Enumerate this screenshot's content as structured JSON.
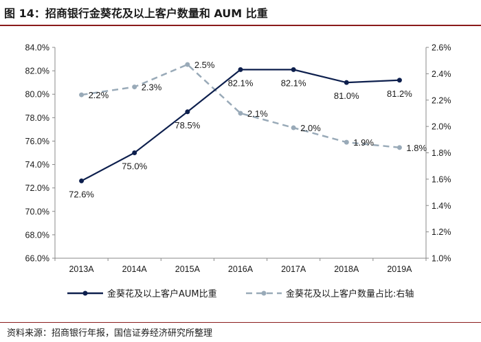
{
  "figure": {
    "title": "图 14：招商银行金葵花及以上客户数量和 AUM 比重",
    "source": "资料来源：招商银行年报，国信证券经济研究所整理"
  },
  "chart_data": {
    "type": "line",
    "title": "",
    "categories": [
      "2013A",
      "2014A",
      "2015A",
      "2016A",
      "2017A",
      "2018A",
      "2019A"
    ],
    "y_left": {
      "min": 66.0,
      "max": 84.0,
      "step": 2.0,
      "ticks": [
        "84.0%",
        "82.0%",
        "80.0%",
        "78.0%",
        "76.0%",
        "74.0%",
        "72.0%",
        "70.0%",
        "68.0%",
        "66.0%"
      ]
    },
    "y_right": {
      "min": 1.0,
      "max": 2.6,
      "step": 0.2,
      "ticks": [
        "2.6%",
        "2.4%",
        "2.2%",
        "2.0%",
        "1.8%",
        "1.6%",
        "1.4%",
        "1.2%",
        "1.0%"
      ]
    },
    "series": [
      {
        "name": "金葵花及以上客户AUM比重",
        "axis": "left",
        "style": "solid",
        "color": "#0d1f4d",
        "values": [
          72.6,
          75.0,
          78.5,
          82.1,
          82.1,
          81.0,
          81.2
        ],
        "labels": [
          "72.6%",
          "75.0%",
          "78.5%",
          "82.1%",
          "82.1%",
          "81.0%",
          "81.2%"
        ]
      },
      {
        "name": "金葵花及以上客户数量占比:右轴",
        "axis": "right",
        "style": "dashed",
        "color": "#99aab8",
        "values": [
          2.24,
          2.3,
          2.47,
          2.1,
          1.99,
          1.88,
          1.84
        ],
        "labels": [
          "2.2%",
          "2.3%",
          "2.5%",
          "2.1%",
          "2.0%",
          "1.9%",
          "1.8%"
        ]
      }
    ],
    "grid": false,
    "legend": "bottom"
  }
}
